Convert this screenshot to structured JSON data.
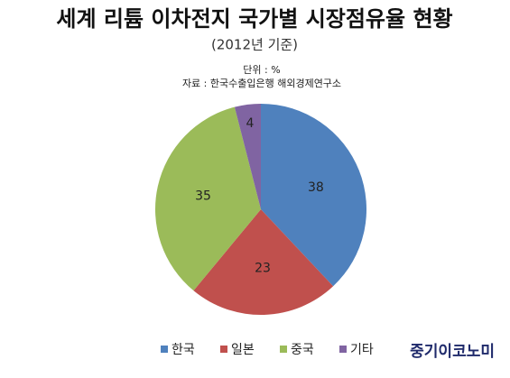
{
  "chart_data": {
    "type": "pie",
    "title": "세계 리튬 이차전지 국가별 시장점유율 현황",
    "subtitle": "(2012년 기준)",
    "unit_note": "단위 : %",
    "source": "자료 : 한국수출입은행 해외경제연구소",
    "categories": [
      "한국",
      "일본",
      "중국",
      "기타"
    ],
    "values": [
      38,
      23,
      35,
      4
    ],
    "colors": [
      "#4f81bd",
      "#c0504d",
      "#9bbb59",
      "#8064a2"
    ],
    "legend": "bottom"
  },
  "logo": "중기이코노미"
}
